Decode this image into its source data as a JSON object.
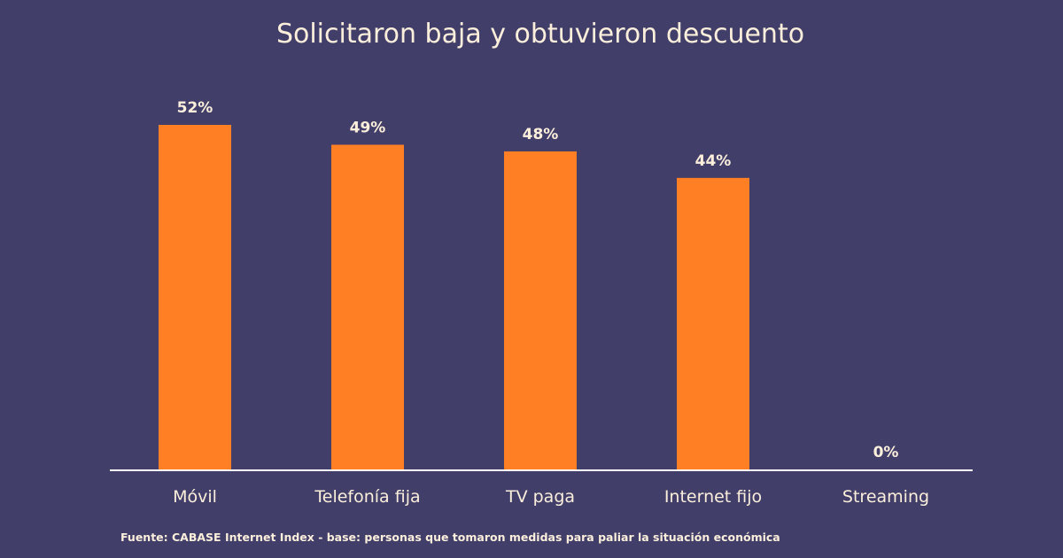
{
  "colors": {
    "background": "#413e69",
    "bar": "#ff7f24",
    "text": "#fbefdc",
    "axis": "#ffffff"
  },
  "chart_data": {
    "type": "bar",
    "title": "Solicitaron baja y obtuvieron descuento",
    "categories": [
      "Móvil",
      "Telefonía fija",
      "TV paga",
      "Internet fijo",
      "Streaming"
    ],
    "values": [
      52,
      49,
      48,
      44,
      0
    ],
    "value_labels": [
      "52%",
      "49%",
      "48%",
      "44%",
      "0%"
    ],
    "unit": "%",
    "ylim": [
      0,
      52
    ],
    "grid": false,
    "legend": "none",
    "source": "Fuente: CABASE Internet Index - base: personas que tomaron medidas para paliar la situación económica"
  }
}
